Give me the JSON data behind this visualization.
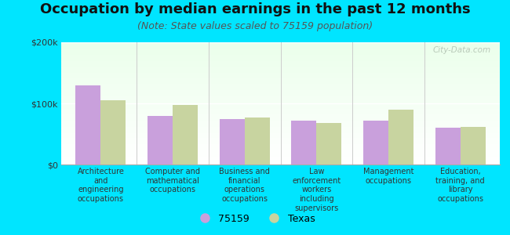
{
  "title": "Occupation by median earnings in the past 12 months",
  "subtitle": "(Note: State values scaled to 75159 population)",
  "categories": [
    "Architecture\nand\nengineering\noccupations",
    "Computer and\nmathematical\noccupations",
    "Business and\nfinancial\noperations\noccupations",
    "Law\nenforcement\nworkers\nincluding\nsupervisors",
    "Management\noccupations",
    "Education,\ntraining, and\nlibrary\noccupations"
  ],
  "values_75159": [
    130000,
    80000,
    75000,
    72000,
    72000,
    60000
  ],
  "values_texas": [
    105000,
    97000,
    77000,
    68000,
    90000,
    62000
  ],
  "color_75159": "#c9a0dc",
  "color_texas": "#c8d4a0",
  "ylim": [
    0,
    200000
  ],
  "ytick_labels": [
    "$0",
    "$100k",
    "$200k"
  ],
  "background_color": "#00e5ff",
  "legend_label_75159": "75159",
  "legend_label_texas": "Texas",
  "watermark": "City-Data.com",
  "title_fontsize": 13,
  "subtitle_fontsize": 9,
  "tick_fontsize": 8,
  "legend_fontsize": 9,
  "cat_fontsize": 7
}
